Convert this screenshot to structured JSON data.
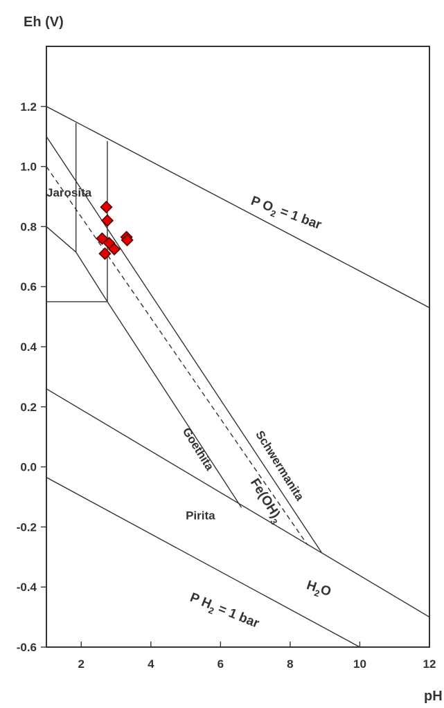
{
  "chart_data": {
    "type": "scatter",
    "xlabel": "pH",
    "ylabel": "Eh (V)",
    "xlim": [
      1,
      12
    ],
    "ylim": [
      -0.6,
      1.4
    ],
    "x_ticks": [
      {
        "value": 2,
        "label": "2"
      },
      {
        "value": 4,
        "label": "4"
      },
      {
        "value": 6,
        "label": "6"
      },
      {
        "value": 8,
        "label": "8"
      },
      {
        "value": 10,
        "label": "10"
      },
      {
        "value": 12,
        "label": "12"
      }
    ],
    "y_ticks": [
      {
        "value": 1.2,
        "label": "1.2"
      },
      {
        "value": 1.0,
        "label": "1.0"
      },
      {
        "value": 0.8,
        "label": "0.8"
      },
      {
        "value": 0.6,
        "label": "0.6"
      },
      {
        "value": 0.4,
        "label": "0.4"
      },
      {
        "value": 0.2,
        "label": "0.2"
      },
      {
        "value": 0.0,
        "label": "0.0"
      },
      {
        "value": -0.2,
        "label": "-0.2"
      },
      {
        "value": -0.4,
        "label": "-0.4"
      },
      {
        "value": -0.6,
        "label": "-0.6"
      }
    ],
    "grid": false,
    "marker_color": "#e00000",
    "line_color": "#333333",
    "points": [
      {
        "x": 2.72,
        "y": 0.865
      },
      {
        "x": 2.75,
        "y": 0.82
      },
      {
        "x": 2.6,
        "y": 0.76
      },
      {
        "x": 2.8,
        "y": 0.745
      },
      {
        "x": 2.95,
        "y": 0.725
      },
      {
        "x": 2.68,
        "y": 0.71
      },
      {
        "x": 3.3,
        "y": 0.765
      },
      {
        "x": 3.32,
        "y": 0.755
      }
    ],
    "boundaries": [
      {
        "name": "po2-line",
        "style": "solid",
        "points": [
          [
            1,
            1.2
          ],
          [
            12,
            0.53
          ]
        ]
      },
      {
        "name": "ph2-line",
        "style": "solid",
        "points": [
          [
            1,
            -0.035
          ],
          [
            10,
            -0.6
          ]
        ]
      },
      {
        "name": "pyrite-upper-line",
        "style": "solid",
        "points": [
          [
            1,
            0.26
          ],
          [
            12,
            -0.5
          ]
        ]
      },
      {
        "name": "jarosite-vertical-left",
        "style": "solid",
        "points": [
          [
            1.85,
            1.145
          ],
          [
            1.85,
            0.715
          ]
        ]
      },
      {
        "name": "jarosite-vertical-right",
        "style": "solid",
        "points": [
          [
            2.75,
            1.085
          ],
          [
            2.75,
            0.55
          ]
        ]
      },
      {
        "name": "jarosite-lower-edge",
        "style": "solid",
        "points": [
          [
            1,
            0.55
          ],
          [
            2.75,
            0.55
          ]
        ]
      },
      {
        "name": "jarosite-diag-lower",
        "style": "solid",
        "points": [
          [
            1,
            0.8
          ],
          [
            1.85,
            0.715
          ]
        ]
      },
      {
        "name": "jarosite-goethite-line",
        "style": "solid",
        "points": [
          [
            1.85,
            0.715
          ],
          [
            2.75,
            0.55
          ]
        ]
      },
      {
        "name": "schwermanita-upper-line",
        "style": "solid",
        "points": [
          [
            1,
            1.1
          ],
          [
            8.9,
            -0.285
          ]
        ]
      },
      {
        "name": "goethita-line",
        "style": "solid",
        "points": [
          [
            2.75,
            0.55
          ],
          [
            6.6,
            -0.135
          ]
        ]
      },
      {
        "name": "fe-oh3-dashed-line",
        "style": "dashed",
        "points": [
          [
            1,
            1.0
          ],
          [
            8.5,
            -0.26
          ]
        ]
      }
    ],
    "annotations": [
      {
        "name": "label-jarosita",
        "text": "Jarosita",
        "x": 1.0,
        "y": 0.9,
        "angle": 0,
        "size": "normal"
      },
      {
        "name": "label-goethita",
        "text": "Goethita",
        "x": 4.9,
        "y": 0.12,
        "angle": 58,
        "size": "normal"
      },
      {
        "name": "label-schwermanita",
        "text": "Schwermanita",
        "x": 7.0,
        "y": 0.11,
        "angle": 58,
        "size": "normal"
      },
      {
        "name": "label-pirita",
        "text": "Pirita",
        "x": 5.0,
        "y": -0.175,
        "angle": 0,
        "size": "normal"
      },
      {
        "name": "label-fe-oh3",
        "main": "Fe(OH)",
        "sub": "3",
        "x": 6.85,
        "y": -0.05,
        "angle": 58
      },
      {
        "name": "label-po2",
        "main": "P O",
        "sub": "2",
        "rest": " = 1 bar",
        "x": 6.85,
        "y": 0.875,
        "angle": 20
      },
      {
        "name": "label-ph2",
        "main": "P H",
        "sub": "2",
        "rest": " = 1 bar",
        "x": 5.1,
        "y": -0.445,
        "angle": 22
      },
      {
        "name": "label-h2o",
        "main": "H",
        "sub": "2",
        "rest": "O",
        "x": 8.45,
        "y": -0.405,
        "angle": 18
      }
    ]
  }
}
